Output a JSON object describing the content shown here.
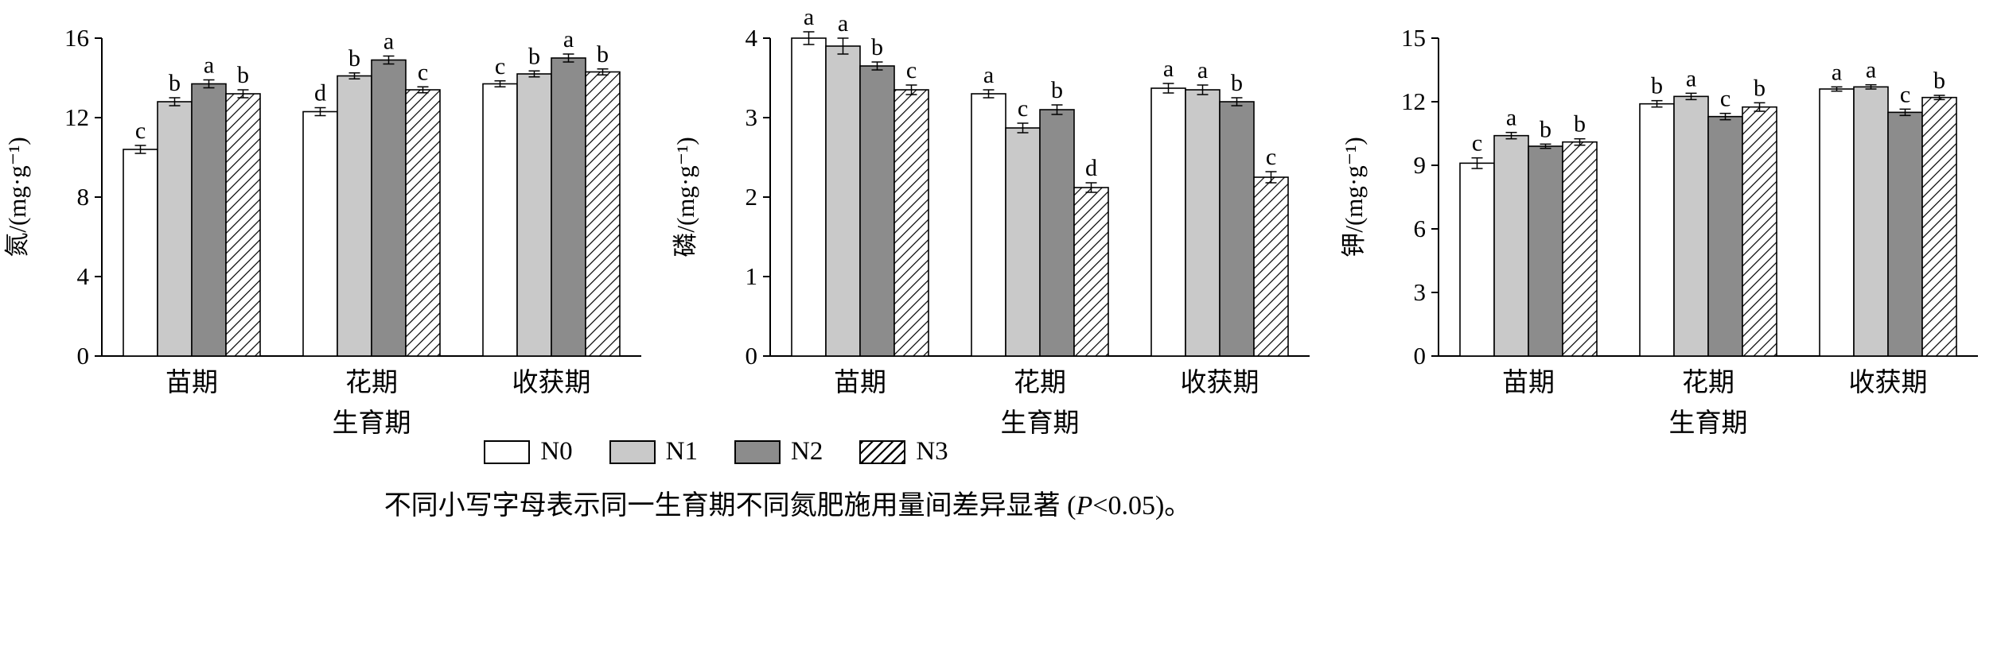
{
  "figure": {
    "caption": {
      "pre": "不同小写字母表示同一生育期不同氮肥施用量间差异显著 (",
      "italic": "P",
      "post": "<0.05)。"
    }
  },
  "legend": {
    "items": [
      {
        "label": "N0",
        "fill": "#ffffff"
      },
      {
        "label": "N1",
        "fill": "#c9c9c9"
      },
      {
        "label": "N2",
        "fill": "#8c8c8c"
      },
      {
        "label": "N3",
        "fill": "hatch"
      }
    ]
  },
  "chart_data": [
    {
      "type": "bar",
      "title": "",
      "ylabel": "氮/(mg·g⁻¹)",
      "xlabel": "生育期",
      "ylim": [
        0,
        16
      ],
      "yticks": [
        0,
        4,
        8,
        12,
        16
      ],
      "categories": [
        "苗期",
        "花期",
        "收获期"
      ],
      "series": [
        {
          "name": "N0",
          "values": [
            10.4,
            12.3,
            13.7
          ],
          "errors": [
            0.2,
            0.2,
            0.15
          ],
          "letters": [
            "c",
            "d",
            "c"
          ]
        },
        {
          "name": "N1",
          "values": [
            12.8,
            14.1,
            14.2
          ],
          "errors": [
            0.2,
            0.15,
            0.15
          ],
          "letters": [
            "b",
            "b",
            "b"
          ]
        },
        {
          "name": "N2",
          "values": [
            13.7,
            14.9,
            15.0
          ],
          "errors": [
            0.2,
            0.2,
            0.2
          ],
          "letters": [
            "a",
            "a",
            "a"
          ]
        },
        {
          "name": "N3",
          "values": [
            13.2,
            13.4,
            14.3
          ],
          "errors": [
            0.2,
            0.15,
            0.15
          ],
          "letters": [
            "b",
            "c",
            "b"
          ]
        }
      ],
      "legend_position": "bottom-shared",
      "grid": false
    },
    {
      "type": "bar",
      "title": "",
      "ylabel": "磷/(mg·g⁻¹)",
      "xlabel": "生育期",
      "ylim": [
        0,
        4
      ],
      "yticks": [
        0,
        1,
        2,
        3,
        4
      ],
      "categories": [
        "苗期",
        "花期",
        "收获期"
      ],
      "series": [
        {
          "name": "N0",
          "values": [
            4.0,
            3.3,
            3.37
          ],
          "errors": [
            0.08,
            0.05,
            0.06
          ],
          "letters": [
            "a",
            "a",
            "a"
          ]
        },
        {
          "name": "N1",
          "values": [
            3.9,
            2.87,
            3.35
          ],
          "errors": [
            0.1,
            0.06,
            0.06
          ],
          "letters": [
            "a",
            "c",
            "a"
          ]
        },
        {
          "name": "N2",
          "values": [
            3.65,
            3.1,
            3.2
          ],
          "errors": [
            0.05,
            0.06,
            0.05
          ],
          "letters": [
            "b",
            "b",
            "b"
          ]
        },
        {
          "name": "N3",
          "values": [
            3.35,
            2.12,
            2.25
          ],
          "errors": [
            0.06,
            0.06,
            0.07
          ],
          "letters": [
            "c",
            "d",
            "c"
          ]
        }
      ],
      "legend_position": "bottom-shared",
      "grid": false
    },
    {
      "type": "bar",
      "title": "",
      "ylabel": "钾/(mg·g⁻¹)",
      "xlabel": "生育期",
      "ylim": [
        0,
        15
      ],
      "yticks": [
        0,
        3,
        6,
        9,
        12,
        15
      ],
      "categories": [
        "苗期",
        "花期",
        "收获期"
      ],
      "series": [
        {
          "name": "N0",
          "values": [
            9.1,
            11.9,
            12.6
          ],
          "errors": [
            0.25,
            0.15,
            0.1
          ],
          "letters": [
            "c",
            "b",
            "a"
          ]
        },
        {
          "name": "N1",
          "values": [
            10.4,
            12.25,
            12.7
          ],
          "errors": [
            0.15,
            0.15,
            0.1
          ],
          "letters": [
            "a",
            "a",
            "a"
          ]
        },
        {
          "name": "N2",
          "values": [
            9.9,
            11.3,
            11.5
          ],
          "errors": [
            0.1,
            0.15,
            0.15
          ],
          "letters": [
            "b",
            "c",
            "c"
          ]
        },
        {
          "name": "N3",
          "values": [
            10.1,
            11.75,
            12.2
          ],
          "errors": [
            0.15,
            0.2,
            0.1
          ],
          "letters": [
            "b",
            "b",
            "b"
          ]
        }
      ],
      "legend_position": "bottom-shared",
      "grid": false
    }
  ]
}
